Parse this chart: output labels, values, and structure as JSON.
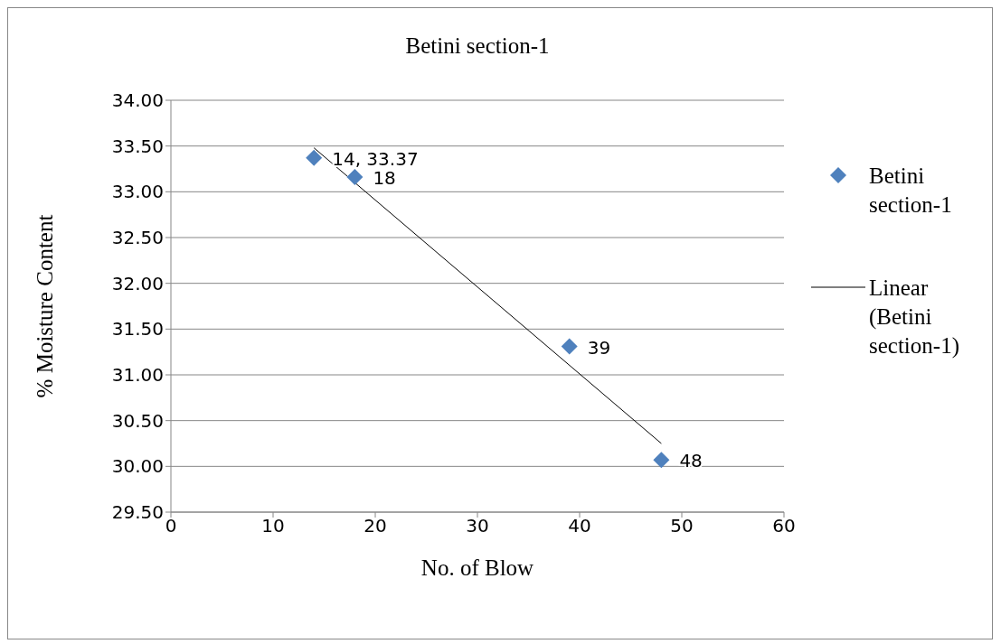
{
  "chart_data": {
    "type": "scatter",
    "title": "Betini section-1",
    "xlabel": "No. of Blow",
    "ylabel": "% Moisture Content",
    "xlim": [
      0,
      60
    ],
    "xticks": [
      0,
      10,
      20,
      30,
      40,
      50,
      60
    ],
    "ylim": [
      29.5,
      34
    ],
    "yticks": [
      {
        "value": 29.5,
        "label": "29.50"
      },
      {
        "value": 30,
        "label": "30.00"
      },
      {
        "value": 30.5,
        "label": "30.50"
      },
      {
        "value": 31,
        "label": "31.00"
      },
      {
        "value": 31.5,
        "label": "31.50"
      },
      {
        "value": 32,
        "label": "32.00"
      },
      {
        "value": 32.5,
        "label": "32.50"
      },
      {
        "value": 33,
        "label": "33.00"
      },
      {
        "value": 33.5,
        "label": "33.50"
      },
      {
        "value": 34,
        "label": "34.00"
      }
    ],
    "grid": "y",
    "legend": "right",
    "marker": "diamond",
    "annotations": [
      {
        "text": "14, 33.37",
        "x": 14,
        "y": 33.37
      },
      {
        "text": "18",
        "x": 18,
        "y": 33.16
      },
      {
        "text": "39",
        "x": 39,
        "y": 31.31
      },
      {
        "text": "48",
        "x": 48,
        "y": 30.07
      }
    ],
    "series": [
      {
        "name": "Betini section-1",
        "color": "#4f81bd",
        "x": [
          14,
          18,
          39,
          48
        ],
        "values": [
          33.37,
          33.16,
          31.31,
          30.07
        ]
      },
      {
        "name": "Linear (Betini section-1)",
        "type": "line",
        "color": "#000000",
        "marker": "none",
        "x": [
          14,
          48
        ],
        "values": [
          33.48,
          30.25
        ]
      }
    ]
  }
}
